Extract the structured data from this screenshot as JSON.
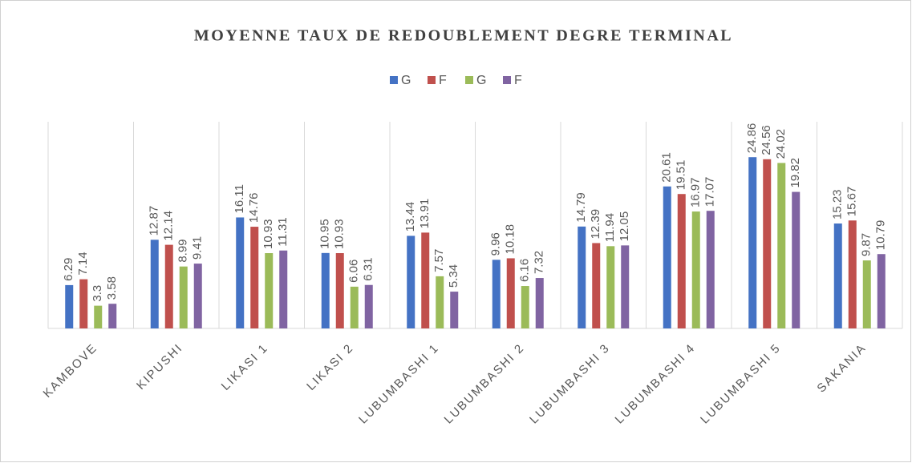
{
  "chart_data": {
    "type": "bar",
    "title": "MOYENNE TAUX DE REDOUBLEMENT DEGRE TERMINAL",
    "categories": [
      "KAMBOVE",
      "KIPUSHI",
      "LIKASI 1",
      "LIKASI 2",
      "LUBUMBASHI 1",
      "LUBUMBASHI 2",
      "LUBUMBASHI 3",
      "LUBUMBASHI 4",
      "LUBUMBASHI 5",
      "SAKANIA"
    ],
    "series": [
      {
        "name": "G",
        "color": "#4472c4",
        "values": [
          6.29,
          12.87,
          16.11,
          10.95,
          13.44,
          9.96,
          14.79,
          20.61,
          24.86,
          15.23
        ]
      },
      {
        "name": "F",
        "color": "#c0504d",
        "values": [
          7.14,
          12.14,
          14.76,
          10.93,
          13.91,
          10.18,
          12.39,
          19.51,
          24.56,
          15.67
        ]
      },
      {
        "name": "G",
        "color": "#9bbb59",
        "values": [
          3.3,
          8.99,
          10.93,
          6.06,
          7.57,
          6.16,
          11.94,
          16.97,
          24.02,
          9.87
        ]
      },
      {
        "name": "F",
        "color": "#8064a2",
        "values": [
          3.58,
          9.41,
          11.31,
          6.31,
          5.34,
          7.32,
          12.05,
          17.07,
          19.82,
          10.79
        ]
      }
    ],
    "ylim": [
      0,
      30
    ],
    "legend": "top"
  }
}
